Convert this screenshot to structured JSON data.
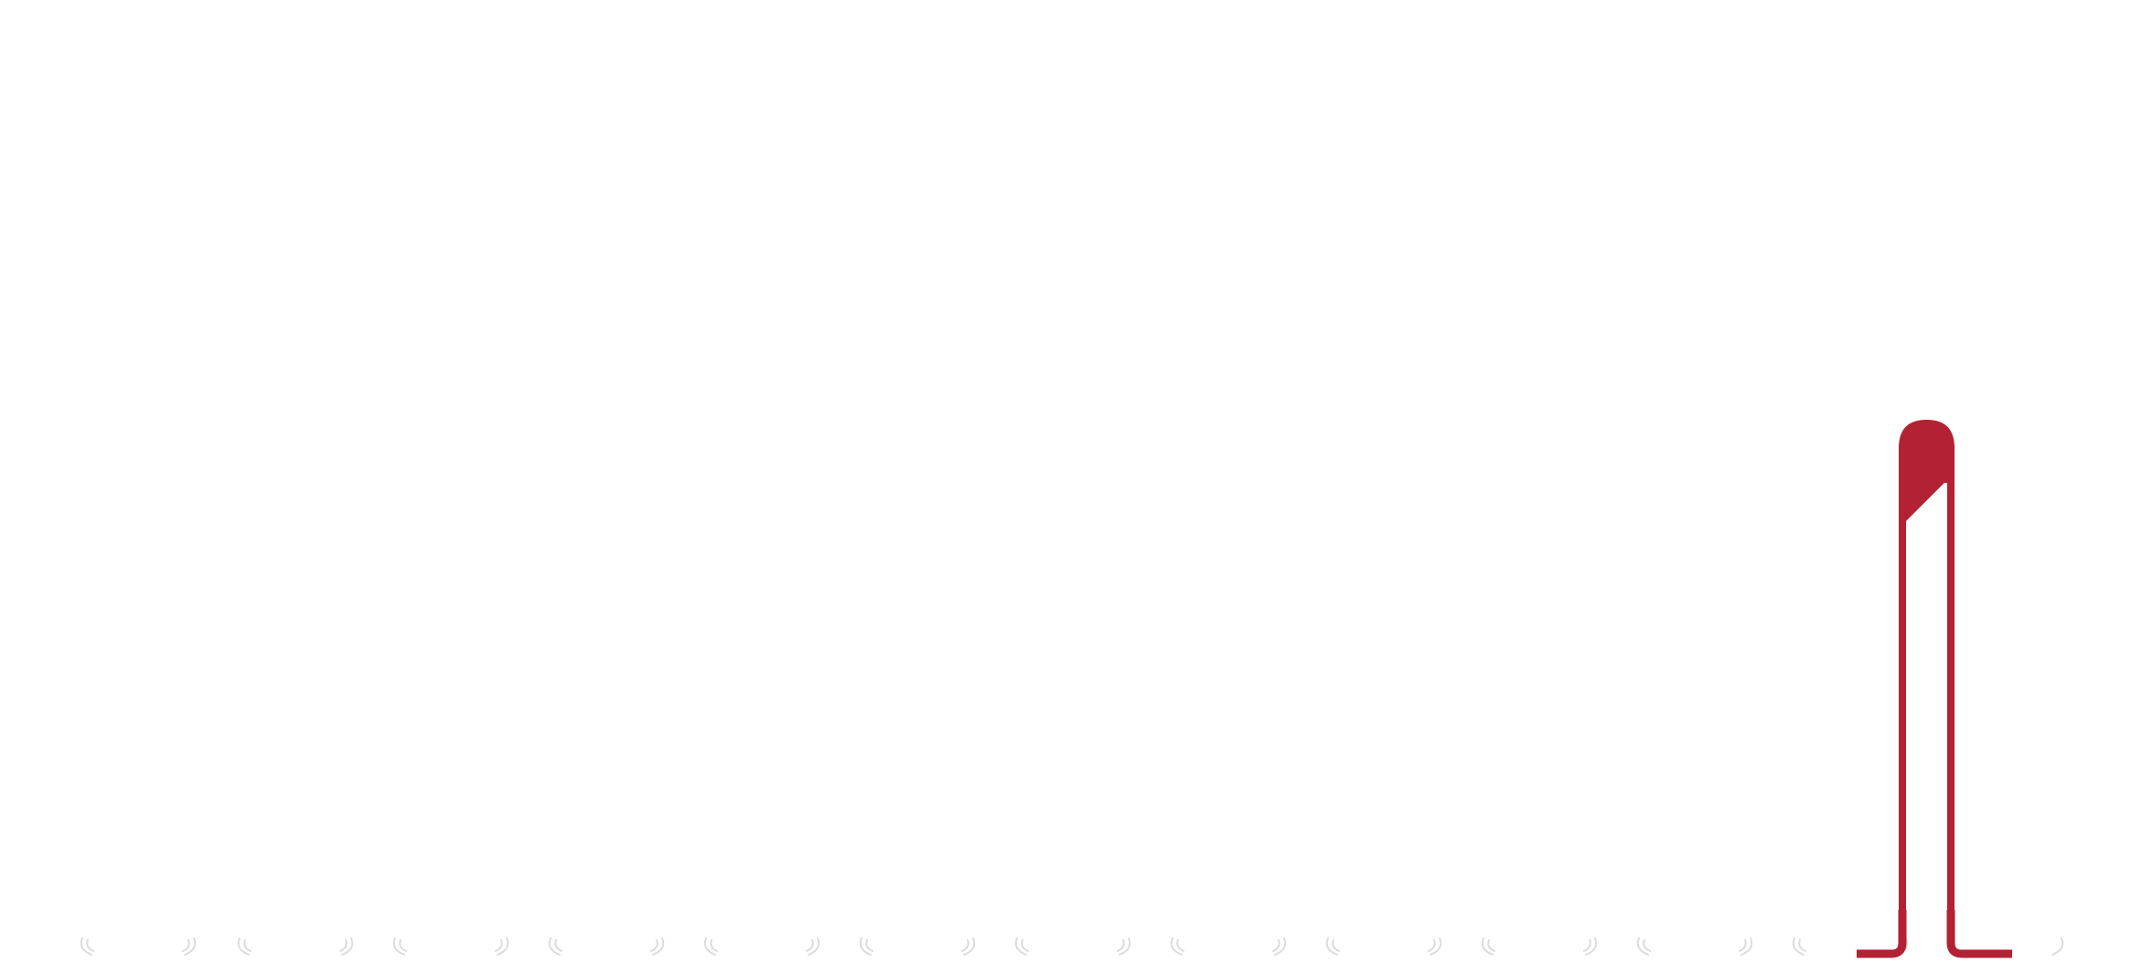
{
  "colors": {
    "background": "#ffffff",
    "accent": "#b22234",
    "faint_marks": "#d9d9d9"
  },
  "icons": {
    "main": "bookmark-hook-icon"
  }
}
